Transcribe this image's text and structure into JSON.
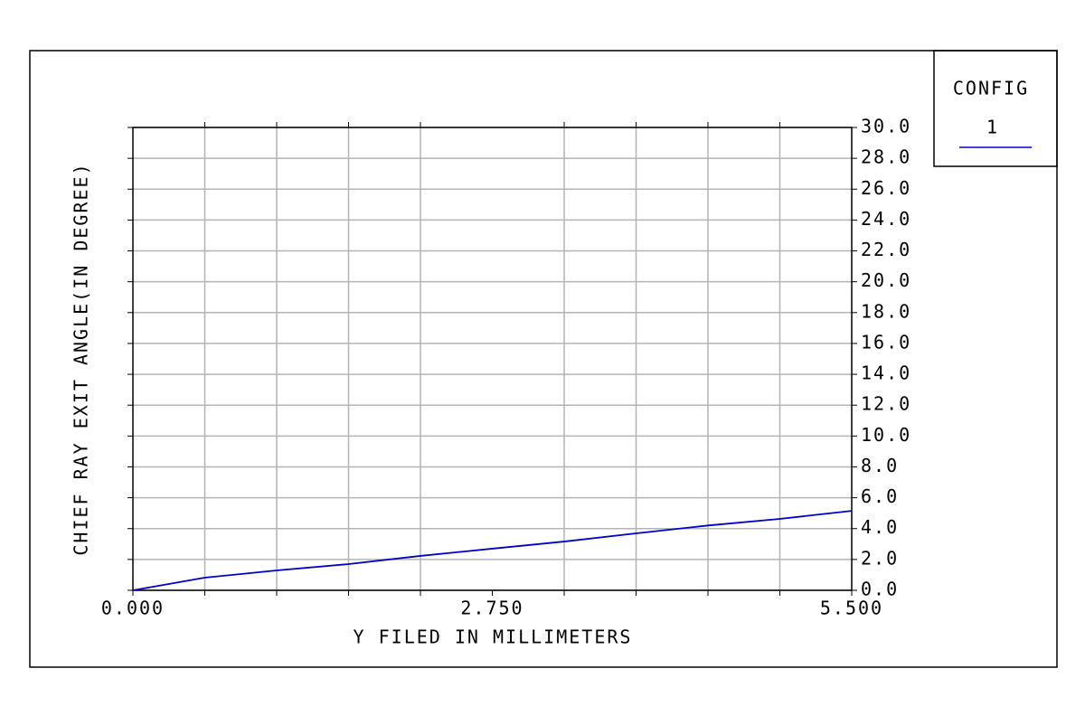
{
  "chart_data": {
    "type": "line",
    "xlabel": "Y FILED IN MILLIMETERS",
    "ylabel": "CHIEF RAY EXIT ANGLE(IN DEGREE)",
    "legend_title": "CONFIG",
    "x": [
      0,
      0.55,
      1.1,
      1.65,
      2.2,
      2.75,
      3.3,
      3.85,
      4.4,
      4.95,
      5.5
    ],
    "series": [
      {
        "name": "1",
        "color": "#0000cc",
        "values": [
          0,
          0.82,
          1.29,
          1.7,
          2.23,
          2.7,
          3.16,
          3.69,
          4.2,
          4.63,
          5.15
        ]
      }
    ],
    "xlim": [
      0,
      5.5
    ],
    "ylim": [
      0,
      30
    ],
    "xticks": [
      {
        "value": 0,
        "label": "0.000"
      },
      {
        "value": 2.75,
        "label": "2.750"
      },
      {
        "value": 5.5,
        "label": "5.500"
      }
    ],
    "xgrid": [
      0.55,
      1.1,
      1.65,
      2.2,
      3.3,
      3.85,
      4.4,
      4.95
    ],
    "yticks": [
      {
        "value": 0,
        "label": "0.0"
      },
      {
        "value": 2,
        "label": "2.0"
      },
      {
        "value": 4,
        "label": "4.0"
      },
      {
        "value": 6,
        "label": "6.0"
      },
      {
        "value": 8,
        "label": "8.0"
      },
      {
        "value": 10,
        "label": "10.0"
      },
      {
        "value": 12,
        "label": "12.0"
      },
      {
        "value": 14,
        "label": "14.0"
      },
      {
        "value": 16,
        "label": "16.0"
      },
      {
        "value": 18,
        "label": "18.0"
      },
      {
        "value": 20,
        "label": "20.0"
      },
      {
        "value": 22,
        "label": "22.0"
      },
      {
        "value": 24,
        "label": "24.0"
      },
      {
        "value": 26,
        "label": "26.0"
      },
      {
        "value": 28,
        "label": "28.0"
      },
      {
        "value": 30,
        "label": "30.0"
      }
    ],
    "grid": true,
    "grid_color": "#b4b4b4"
  }
}
